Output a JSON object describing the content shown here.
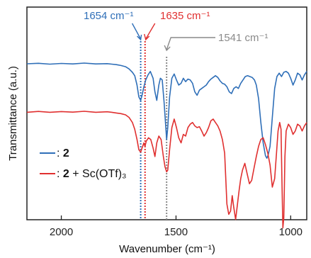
{
  "chart_data": {
    "type": "line",
    "xlabel": "Wavenumber (cm⁻¹)",
    "ylabel": "Transmittance (a.u.)",
    "xlim": [
      2150,
      930
    ],
    "x_reversed": true,
    "x_ticks": [
      2000,
      1500,
      1000
    ],
    "y_ticks": "none",
    "grid": false,
    "legend_position": "bottom-left",
    "colors": {
      "blue": "#2f6fb8",
      "red": "#e03030",
      "gray": "#8a8a8a"
    },
    "series": [
      {
        "name": "2",
        "color": "#2f6fb8",
        "x": [
          2150,
          2100,
          2050,
          2000,
          1950,
          1900,
          1850,
          1800,
          1780,
          1760,
          1740,
          1720,
          1705,
          1690,
          1680,
          1670,
          1662,
          1654,
          1648,
          1640,
          1632,
          1622,
          1612,
          1600,
          1592,
          1584,
          1575,
          1568,
          1560,
          1552,
          1545,
          1541,
          1536,
          1528,
          1518,
          1508,
          1498,
          1488,
          1478,
          1468,
          1458,
          1448,
          1438,
          1428,
          1418,
          1408,
          1398,
          1388,
          1378,
          1368,
          1358,
          1348,
          1338,
          1328,
          1318,
          1308,
          1298,
          1288,
          1278,
          1268,
          1258,
          1248,
          1238,
          1228,
          1218,
          1208,
          1198,
          1188,
          1178,
          1168,
          1158,
          1150,
          1140,
          1130,
          1120,
          1110,
          1104,
          1098,
          1090,
          1080,
          1070,
          1060,
          1050,
          1040,
          1030,
          1020,
          1010,
          1000,
          990,
          980,
          970,
          960,
          950,
          940,
          930
        ],
        "y": [
          64.5,
          64.8,
          64.3,
          64.7,
          64.4,
          64.9,
          64.4,
          64.6,
          64.3,
          64.0,
          63.5,
          62.8,
          61.5,
          59.5,
          57.5,
          52.0,
          45.0,
          43.0,
          46.0,
          51.0,
          55.0,
          58.0,
          60.0,
          56.0,
          48.0,
          43.0,
          52.0,
          56.0,
          55.0,
          42.0,
          28.0,
          20.0,
          27.0,
          45.0,
          56.0,
          58.5,
          55.0,
          52.0,
          53.0,
          56.0,
          54.0,
          55.5,
          55.0,
          53.0,
          48.0,
          46.0,
          49.0,
          50.0,
          51.0,
          52.0,
          54.0,
          55.5,
          56.5,
          57.5,
          56.5,
          54.5,
          53.0,
          52.5,
          51.0,
          48.0,
          47.0,
          50.0,
          51.0,
          50.0,
          53.0,
          55.0,
          57.0,
          57.5,
          57.0,
          56.5,
          55.0,
          52.0,
          44.0,
          30.0,
          18.0,
          10.5,
          9.0,
          11.0,
          16.0,
          33.0,
          50.0,
          57.0,
          59.0,
          57.0,
          59.5,
          60.0,
          59.0,
          56.0,
          52.0,
          55.0,
          59.0,
          58.0,
          55.0,
          58.0,
          60.0
        ]
      },
      {
        "name": "2 + Sc(OTf)₃",
        "color": "#e03030",
        "x": [
          2150,
          2100,
          2050,
          2000,
          1950,
          1900,
          1850,
          1800,
          1780,
          1760,
          1740,
          1720,
          1705,
          1690,
          1680,
          1670,
          1662,
          1654,
          1648,
          1640,
          1635,
          1630,
          1620,
          1610,
          1600,
          1592,
          1584,
          1575,
          1565,
          1555,
          1548,
          1541,
          1536,
          1528,
          1518,
          1508,
          1498,
          1488,
          1478,
          1468,
          1458,
          1448,
          1438,
          1428,
          1418,
          1408,
          1398,
          1388,
          1378,
          1368,
          1358,
          1348,
          1338,
          1328,
          1318,
          1308,
          1298,
          1288,
          1278,
          1270,
          1262,
          1255,
          1248,
          1240,
          1232,
          1225,
          1218,
          1210,
          1200,
          1190,
          1180,
          1170,
          1160,
          1150,
          1140,
          1130,
          1120,
          1110,
          1100,
          1090,
          1080,
          1070,
          1062,
          1055,
          1048,
          1042,
          1038,
          1034,
          1030,
          1025,
          1020,
          1010,
          1000,
          990,
          980,
          970,
          960,
          950,
          940,
          930
        ],
        "y": [
          36.0,
          36.5,
          36.0,
          36.4,
          36.1,
          36.6,
          36.0,
          36.3,
          36.0,
          35.6,
          35.2,
          34.5,
          33.0,
          30.0,
          26.0,
          20.0,
          14.0,
          12.5,
          15.0,
          18.0,
          16.0,
          19.0,
          21.0,
          20.0,
          15.0,
          10.0,
          18.0,
          22.0,
          20.0,
          10.0,
          4.0,
          1.0,
          2.0,
          14.0,
          27.0,
          32.0,
          27.0,
          21.0,
          18.0,
          23.0,
          22.0,
          27.0,
          29.0,
          30.0,
          28.0,
          27.0,
          27.5,
          25.0,
          22.0,
          24.0,
          27.0,
          31.0,
          32.0,
          30.0,
          28.0,
          25.0,
          20.0,
          12.0,
          -18.0,
          -24.0,
          -22.0,
          -13.0,
          -20.0,
          -27.0,
          -18.0,
          -10.0,
          -3.0,
          2.0,
          6.0,
          0.0,
          -6.0,
          -4.0,
          3.0,
          10.0,
          16.0,
          20.0,
          21.0,
          17.0,
          12.0,
          5.0,
          -8.0,
          -3.0,
          12.0,
          25.0,
          30.0,
          26.0,
          -5.0,
          -32.0,
          -26.0,
          10.0,
          25.0,
          29.0,
          27.0,
          23.0,
          25.0,
          29.0,
          28.0,
          25.0,
          28.0,
          30.0
        ]
      }
    ],
    "reference_lines": [
      {
        "x": 1654,
        "color": "#2f6fb8",
        "style": "dotted",
        "label": "1654 cm⁻¹"
      },
      {
        "x": 1635,
        "color": "#e03030",
        "style": "dotted",
        "label": "1635 cm⁻¹"
      },
      {
        "x": 1541,
        "color": "#8a8a8a",
        "style": "dotted",
        "label": "1541 cm⁻¹"
      }
    ],
    "legend": [
      {
        "prefix": ": ",
        "bold": "2",
        "suffix": ""
      },
      {
        "prefix": ": ",
        "bold": "2",
        "suffix": " + Sc(OTf)₃"
      }
    ]
  }
}
